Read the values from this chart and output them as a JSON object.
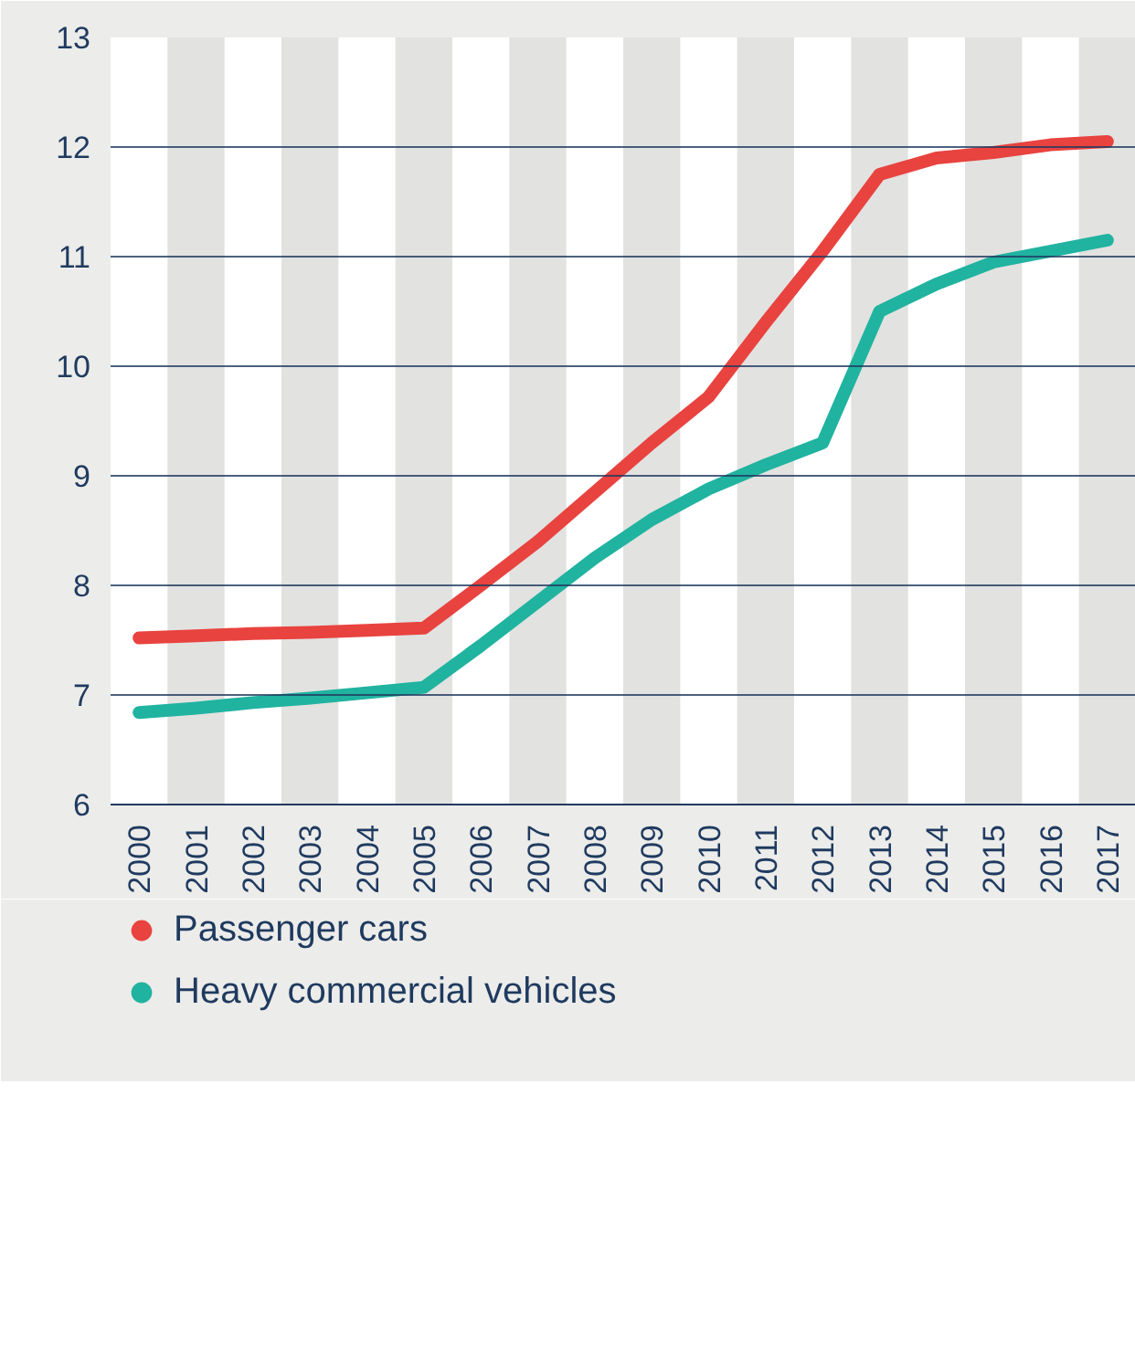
{
  "chart_data": {
    "type": "line",
    "categories": [
      "2000",
      "2001",
      "2002",
      "2003",
      "2004",
      "2005",
      "2006",
      "2007",
      "2008",
      "2009",
      "2010",
      "2011",
      "2012",
      "2013",
      "2014",
      "2015",
      "2016",
      "2017"
    ],
    "series": [
      {
        "name": "Passenger cars",
        "color": "#e8433f",
        "values": [
          7.52,
          7.54,
          7.56,
          7.57,
          7.59,
          7.61,
          8.0,
          8.4,
          8.85,
          9.3,
          9.72,
          10.4,
          11.05,
          11.75,
          11.9,
          11.95,
          12.02,
          12.05
        ]
      },
      {
        "name": "Heavy commercial vehicles",
        "color": "#20b3a0",
        "values": [
          6.84,
          6.88,
          6.93,
          6.97,
          7.02,
          7.07,
          7.45,
          7.85,
          8.25,
          8.6,
          8.88,
          9.1,
          9.3,
          10.5,
          10.75,
          10.95,
          11.05,
          11.15
        ]
      }
    ],
    "ylim": [
      6,
      13
    ],
    "yticks": [
      6,
      7,
      8,
      9,
      10,
      11,
      12,
      13
    ],
    "grid": "y",
    "legend": "bottom",
    "marker": "none",
    "line_style": "solid",
    "bands": [
      {
        "axis": "x",
        "from": "2001",
        "to": "2001",
        "color": "#e2e2e0"
      },
      {
        "axis": "x",
        "from": "2003",
        "to": "2003",
        "color": "#e2e2e0"
      },
      {
        "axis": "x",
        "from": "2005",
        "to": "2005",
        "color": "#e2e2e0"
      },
      {
        "axis": "x",
        "from": "2007",
        "to": "2007",
        "color": "#e2e2e0"
      },
      {
        "axis": "x",
        "from": "2009",
        "to": "2009",
        "color": "#e2e2e0"
      },
      {
        "axis": "x",
        "from": "2011",
        "to": "2011",
        "color": "#e2e2e0"
      },
      {
        "axis": "x",
        "from": "2013",
        "to": "2013",
        "color": "#e2e2e0"
      },
      {
        "axis": "x",
        "from": "2015",
        "to": "2015",
        "color": "#e2e2e0"
      },
      {
        "axis": "x",
        "from": "2017",
        "to": "2017",
        "color": "#e2e2e0"
      }
    ]
  }
}
